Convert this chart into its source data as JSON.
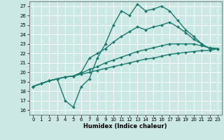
{
  "title": "",
  "xlabel": "Humidex (Indice chaleur)",
  "bg_color": "#cce8e4",
  "grid_color": "#ffffff",
  "line_color": "#1a7a6e",
  "xlim": [
    -0.5,
    23.5
  ],
  "ylim": [
    15.5,
    27.5
  ],
  "xticks": [
    0,
    1,
    2,
    3,
    4,
    5,
    6,
    7,
    8,
    9,
    10,
    11,
    12,
    13,
    14,
    15,
    16,
    17,
    18,
    19,
    20,
    21,
    22,
    23
  ],
  "yticks": [
    16,
    17,
    18,
    19,
    20,
    21,
    22,
    23,
    24,
    25,
    26,
    27
  ],
  "series": [
    {
      "x": [
        0,
        1,
        2,
        3,
        4,
        5,
        6,
        7,
        8,
        9,
        10,
        11,
        12,
        13,
        14,
        15,
        16,
        17,
        18,
        19,
        20,
        21,
        22,
        23
      ],
      "y": [
        18.5,
        18.8,
        19.1,
        19.3,
        19.5,
        19.6,
        19.8,
        20.0,
        20.2,
        20.4,
        20.6,
        20.8,
        21.0,
        21.2,
        21.4,
        21.5,
        21.7,
        21.9,
        22.0,
        22.1,
        22.2,
        22.3,
        22.3,
        22.5
      ],
      "marker": "D",
      "markersize": 2.0,
      "linewidth": 1.0
    },
    {
      "x": [
        0,
        1,
        2,
        3,
        4,
        5,
        6,
        7,
        8,
        9,
        10,
        11,
        12,
        13,
        14,
        15,
        16,
        17,
        18,
        19,
        20,
        21,
        22,
        23
      ],
      "y": [
        18.5,
        18.8,
        19.1,
        19.3,
        19.5,
        19.6,
        19.9,
        20.3,
        20.6,
        21.0,
        21.3,
        21.6,
        21.9,
        22.2,
        22.4,
        22.6,
        22.8,
        23.0,
        23.0,
        23.0,
        23.0,
        22.8,
        22.6,
        22.5
      ],
      "marker": "D",
      "markersize": 2.0,
      "linewidth": 1.0
    },
    {
      "x": [
        0,
        1,
        2,
        3,
        4,
        5,
        6,
        7,
        8,
        9,
        10,
        11,
        12,
        13,
        14,
        15,
        16,
        17,
        18,
        19,
        20,
        21,
        22,
        23
      ],
      "y": [
        18.5,
        18.8,
        19.1,
        19.3,
        19.5,
        19.6,
        20.0,
        21.5,
        22.0,
        22.5,
        23.2,
        23.8,
        24.3,
        24.8,
        24.5,
        24.8,
        25.0,
        25.3,
        24.8,
        24.2,
        23.5,
        23.0,
        22.5,
        22.5
      ],
      "marker": "D",
      "markersize": 2.0,
      "linewidth": 1.0
    },
    {
      "x": [
        0,
        1,
        2,
        3,
        4,
        5,
        6,
        7,
        8,
        9,
        10,
        11,
        12,
        13,
        14,
        15,
        16,
        17,
        18,
        19,
        20,
        21,
        22,
        23
      ],
      "y": [
        18.5,
        18.8,
        19.1,
        19.3,
        17.0,
        16.3,
        18.5,
        19.3,
        21.5,
        23.0,
        25.0,
        26.5,
        26.0,
        27.2,
        26.5,
        26.7,
        27.0,
        26.5,
        25.5,
        24.5,
        23.8,
        23.0,
        22.5,
        22.5
      ],
      "marker": "D",
      "markersize": 2.0,
      "linewidth": 1.0
    }
  ]
}
